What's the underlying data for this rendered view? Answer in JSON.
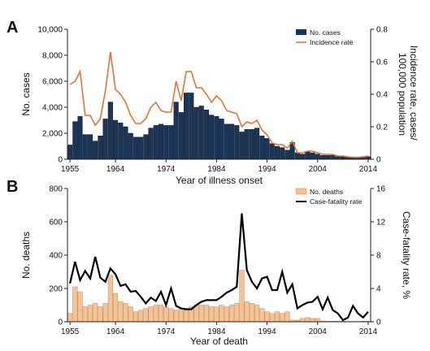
{
  "colors": {
    "cases_bar": "#1c3557",
    "cases_bar_edge": "#0d1f36",
    "incidence_line": "#e0743a",
    "deaths_bar": "#f5c398",
    "deaths_bar_edge": "#c8875a",
    "cfr_line": "#000000",
    "axis": "#222222"
  },
  "chart_data": [
    {
      "panel": "A",
      "type": "bar+line",
      "xlabel": "Year of illness onset",
      "ylabel": "No. cases",
      "y2label": "Incidence rate, cases/100,000 population",
      "ylim": [
        0,
        10000
      ],
      "y2lim": [
        0,
        0.8
      ],
      "x_tick_labels": [
        "1955",
        "1964",
        "1974",
        "1984",
        "1994",
        "2004",
        "2014"
      ],
      "y_tick_labels": [
        "0",
        "2,000",
        "4,000",
        "6,000",
        "8,000",
        "10,000"
      ],
      "y2_tick_labels": [
        "0",
        "0.2",
        "0.4",
        "0.6",
        "0.8"
      ],
      "legend_position": "top-right",
      "x": [
        1955,
        1956,
        1957,
        1958,
        1959,
        1960,
        1961,
        1962,
        1963,
        1964,
        1965,
        1966,
        1967,
        1968,
        1969,
        1970,
        1971,
        1972,
        1973,
        1974,
        1975,
        1976,
        1977,
        1978,
        1979,
        1980,
        1981,
        1982,
        1983,
        1984,
        1985,
        1986,
        1987,
        1988,
        1989,
        1990,
        1991,
        1992,
        1993,
        1994,
        1995,
        1996,
        1997,
        1998,
        1999,
        2000,
        2001,
        2002,
        2003,
        2004,
        2005,
        2006,
        2007,
        2008,
        2009,
        2010,
        2011,
        2012,
        2013,
        2014
      ],
      "series": [
        {
          "name": "No. cases",
          "kind": "bar",
          "axis": "left",
          "values": [
            1100,
            2900,
            3300,
            1900,
            1900,
            1400,
            1800,
            3100,
            4400,
            3000,
            2800,
            2500,
            2000,
            1700,
            1700,
            1900,
            2400,
            2600,
            2700,
            2600,
            2600,
            4400,
            3600,
            5100,
            5100,
            4000,
            4100,
            3800,
            3400,
            3300,
            3100,
            2700,
            2700,
            2600,
            2100,
            2300,
            2300,
            2400,
            1800,
            1600,
            1200,
            1000,
            900,
            700,
            1300,
            500,
            400,
            600,
            500,
            400,
            300,
            300,
            300,
            200,
            200,
            150,
            120,
            100,
            150,
            200
          ]
        },
        {
          "name": "Incidence rate",
          "kind": "line",
          "axis": "right",
          "values": [
            0.46,
            0.48,
            0.54,
            0.27,
            0.27,
            0.21,
            0.25,
            0.42,
            0.66,
            0.43,
            0.4,
            0.35,
            0.27,
            0.22,
            0.22,
            0.25,
            0.32,
            0.35,
            0.3,
            0.29,
            0.29,
            0.48,
            0.36,
            0.54,
            0.54,
            0.44,
            0.44,
            0.4,
            0.35,
            0.39,
            0.36,
            0.3,
            0.29,
            0.28,
            0.2,
            0.23,
            0.22,
            0.24,
            0.18,
            0.15,
            0.1,
            0.09,
            0.09,
            0.07,
            0.11,
            0.04,
            0.04,
            0.05,
            0.05,
            0.04,
            0.03,
            0.03,
            0.03,
            0.02,
            0.02,
            0.015,
            0.012,
            0.012,
            0.015,
            0.02
          ]
        }
      ]
    },
    {
      "panel": "B",
      "type": "bar+line",
      "xlabel": "Year of death",
      "ylabel": "No. deaths",
      "y2label": "Case-fatality rate, %",
      "ylim": [
        0,
        800
      ],
      "y2lim": [
        0,
        16
      ],
      "x_tick_labels": [
        "1955",
        "1964",
        "1974",
        "1984",
        "1994",
        "2004",
        "2014"
      ],
      "y_tick_labels": [
        "0",
        "200",
        "400",
        "600",
        "800"
      ],
      "y2_tick_labels": [
        "0",
        "4",
        "8",
        "12",
        "16"
      ],
      "legend_position": "top-right",
      "x": [
        1955,
        1956,
        1957,
        1958,
        1959,
        1960,
        1961,
        1962,
        1963,
        1964,
        1965,
        1966,
        1967,
        1968,
        1969,
        1970,
        1971,
        1972,
        1973,
        1974,
        1975,
        1976,
        1977,
        1978,
        1979,
        1980,
        1981,
        1982,
        1983,
        1984,
        1985,
        1986,
        1987,
        1988,
        1989,
        1990,
        1991,
        1992,
        1993,
        1994,
        1995,
        1996,
        1997,
        1998,
        1999,
        2000,
        2001,
        2002,
        2003,
        2004,
        2005,
        2006,
        2007,
        2008,
        2009,
        2010,
        2011,
        2012,
        2013,
        2014
      ],
      "series": [
        {
          "name": "No. deaths",
          "kind": "bar",
          "axis": "left",
          "values": [
            50,
            210,
            180,
            90,
            100,
            110,
            90,
            110,
            280,
            170,
            120,
            110,
            90,
            60,
            70,
            80,
            90,
            100,
            100,
            90,
            80,
            70,
            80,
            80,
            90,
            100,
            100,
            100,
            90,
            90,
            100,
            90,
            100,
            110,
            310,
            120,
            110,
            100,
            80,
            60,
            50,
            60,
            50,
            60,
            10,
            10,
            20,
            25,
            20,
            20,
            5,
            3,
            3,
            3,
            3,
            2,
            2,
            2,
            3,
            3
          ]
        },
        {
          "name": "Case-fatality rate",
          "kind": "line",
          "axis": "right",
          "values": [
            4.6,
            7.2,
            5.0,
            6.1,
            5.2,
            7.8,
            5.3,
            4.8,
            6.4,
            5.7,
            4.3,
            4.5,
            3.6,
            3.7,
            3.0,
            2.2,
            2.9,
            2.5,
            3.6,
            2.0,
            4.0,
            1.9,
            1.6,
            1.5,
            1.5,
            2.0,
            2.4,
            2.6,
            2.6,
            2.6,
            3.0,
            3.5,
            3.8,
            4.2,
            13.0,
            6.2,
            4.8,
            4.0,
            5.2,
            5.4,
            3.8,
            3.8,
            6.0,
            3.5,
            4.5,
            1.6,
            2.0,
            2.3,
            2.4,
            3.0,
            1.5,
            2.9,
            1.4,
            1.0,
            0.2,
            0.5,
            1.9,
            1.0,
            0.5,
            1.2
          ]
        }
      ]
    }
  ]
}
